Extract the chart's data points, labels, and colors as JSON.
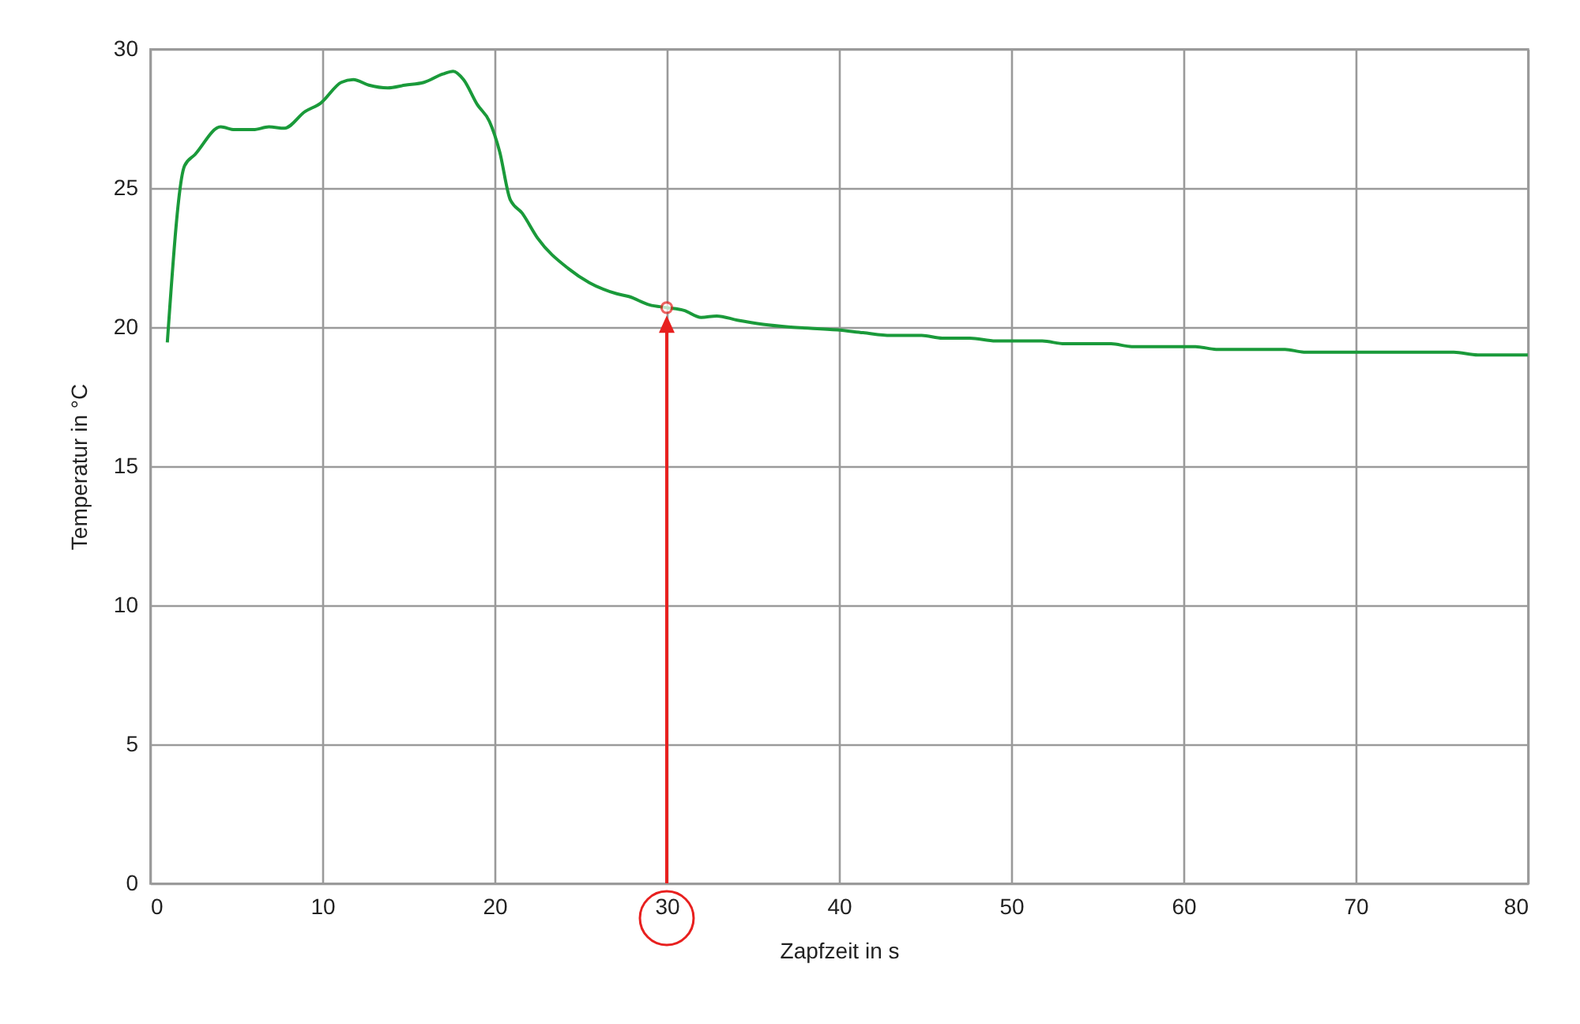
{
  "chart_data": {
    "type": "line",
    "xlabel": "Zapfzeit in s",
    "ylabel": "Temperatur  in °C",
    "xlim": [
      0,
      80
    ],
    "xticks": [
      0,
      10,
      20,
      30,
      40,
      50,
      60,
      70,
      80
    ],
    "ylim": [
      0,
      30
    ],
    "yticks": [
      0,
      5,
      10,
      15,
      20,
      25,
      30
    ],
    "grid": true,
    "series": [
      {
        "color": "#1a9a3a",
        "marker": "none",
        "x": [
          1,
          2,
          2.6,
          4.1,
          4.9,
          6,
          6.9,
          7.8,
          9,
          9.9,
          11.1,
          11.8,
          12.7,
          13.8,
          14.8,
          15.9,
          17,
          17.6,
          18.2,
          19,
          19.7,
          20.3,
          20.9,
          21.6,
          22.5,
          24.3,
          25.5,
          27.1,
          27.8,
          29,
          30,
          31,
          32,
          32.9,
          34.1,
          35.6,
          37.2,
          39.9,
          41.4,
          43,
          44.8,
          46,
          47.6,
          49.1,
          51.8,
          53.1,
          55.8,
          57,
          60.7,
          61.9,
          65.9,
          67,
          75.7,
          77.1,
          80
        ],
        "values": [
          19.45,
          25.8,
          26.2,
          27.2,
          27.1,
          27.1,
          27.2,
          27.15,
          27.75,
          28.05,
          28.8,
          28.9,
          28.7,
          28.6,
          28.7,
          28.8,
          29.1,
          29.2,
          28.9,
          28,
          27.4,
          26.3,
          24.6,
          24.1,
          23.2,
          22.1,
          21.6,
          21.2,
          21.1,
          20.8,
          20.7,
          20.6,
          20.35,
          20.4,
          20.25,
          20.1,
          20,
          19.9,
          19.8,
          19.7,
          19.7,
          19.6,
          19.6,
          19.5,
          19.5,
          19.4,
          19.4,
          19.3,
          19.3,
          19.2,
          19.2,
          19.1,
          19.1,
          19,
          19
        ]
      },
      {
        "type": "scatter",
        "color": "#e8201f",
        "marker": "circle",
        "x": [
          30
        ],
        "values": [
          20.7
        ]
      }
    ]
  }
}
